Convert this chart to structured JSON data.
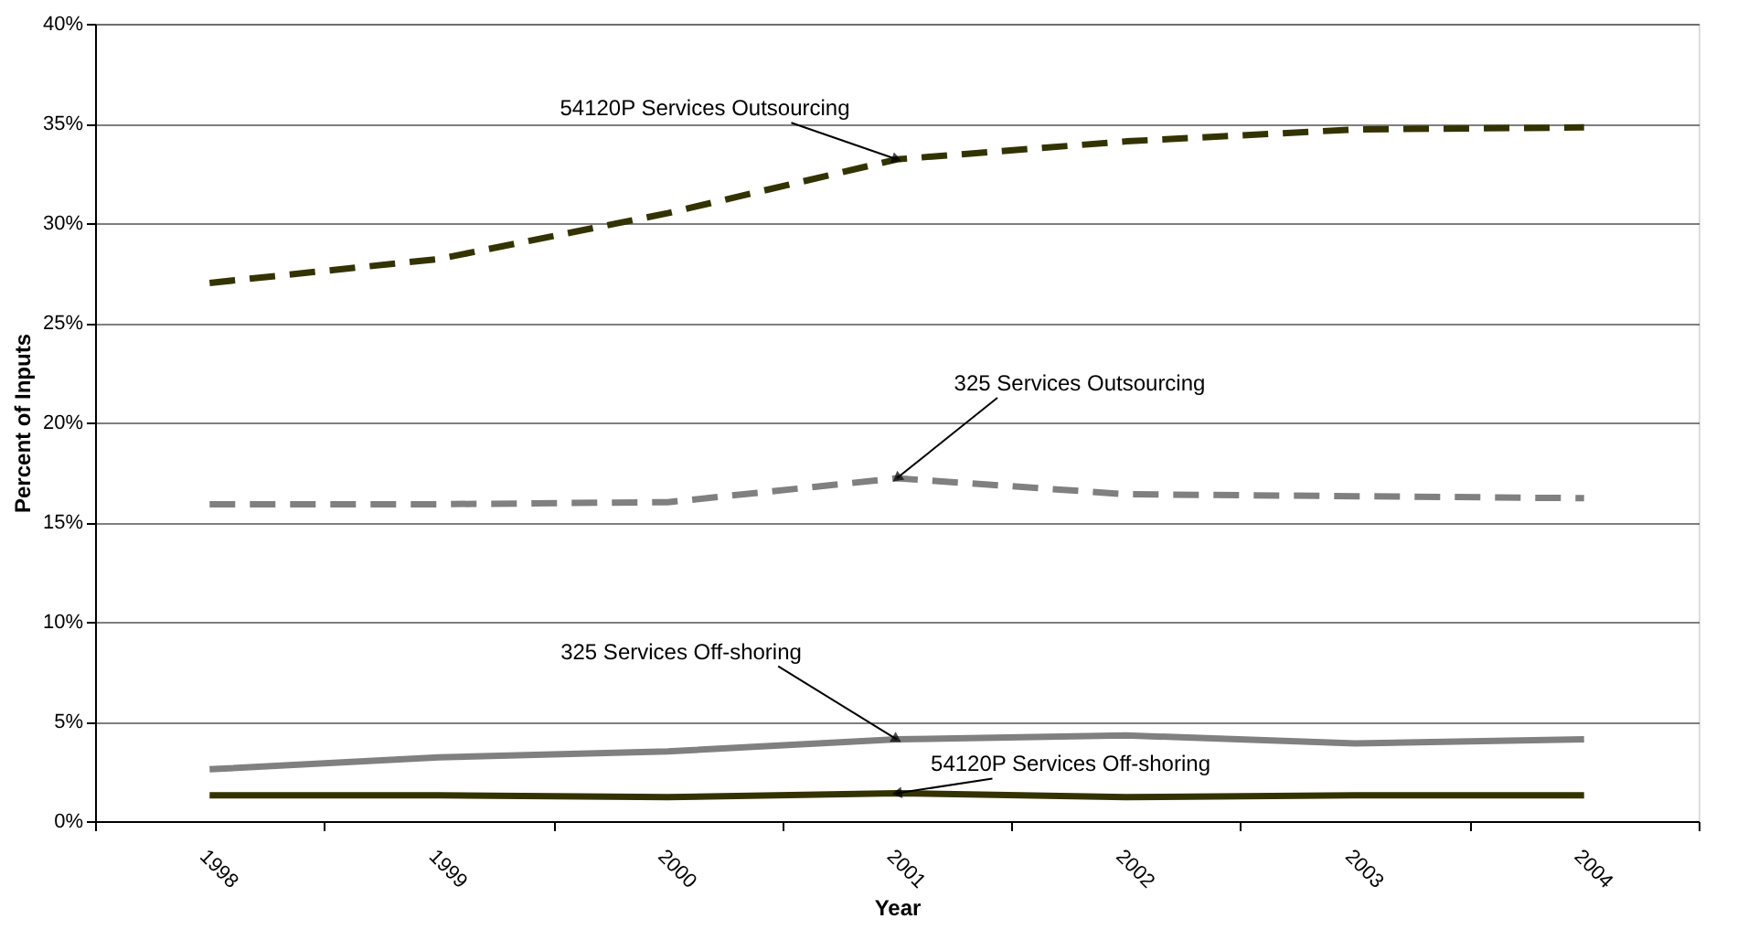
{
  "chart_data": {
    "type": "line",
    "xlabel": "Year",
    "ylabel": "Percent of Inputs",
    "categories": [
      "1998",
      "1999",
      "2000",
      "2001",
      "2002",
      "2003",
      "2004"
    ],
    "series": [
      {
        "color": "#333300",
        "line_style": "dashed",
        "values": [
          27.0,
          28.2,
          30.5,
          33.2,
          34.1,
          34.7,
          34.8
        ]
      },
      {
        "color": "#808080",
        "line_style": "dashed",
        "values": [
          15.9,
          15.9,
          16.0,
          17.2,
          16.4,
          16.3,
          16.2
        ]
      },
      {
        "color": "#808080",
        "line_style": "solid",
        "values": [
          2.6,
          3.2,
          3.5,
          4.1,
          4.3,
          3.9,
          4.1
        ]
      },
      {
        "color": "#333300",
        "line_style": "solid",
        "values": [
          1.3,
          1.3,
          1.2,
          1.4,
          1.2,
          1.3,
          1.3
        ]
      }
    ],
    "annotations": [
      {
        "text": "54120P Services Outsourcing",
        "x": "2001",
        "y": 33.2
      },
      {
        "text": "325 Services Outsourcing",
        "x": "2001",
        "y": 17.2
      },
      {
        "text": "325 Services Off-shoring",
        "x": "2001",
        "y": 4.1
      },
      {
        "text": "54120P Services Off-shoring",
        "x": "2001",
        "y": 1.4
      }
    ],
    "ylim": [
      0,
      40
    ],
    "yticks": [
      {
        "value": 0,
        "label": "0%"
      },
      {
        "value": 5,
        "label": "5%"
      },
      {
        "value": 10,
        "label": "10%"
      },
      {
        "value": 15,
        "label": "15%"
      },
      {
        "value": 20,
        "label": "20%"
      },
      {
        "value": 25,
        "label": "25%"
      },
      {
        "value": 30,
        "label": "30%"
      },
      {
        "value": 35,
        "label": "35%"
      },
      {
        "value": 40,
        "label": "40%"
      }
    ],
    "grid": "y",
    "marker": "none"
  }
}
